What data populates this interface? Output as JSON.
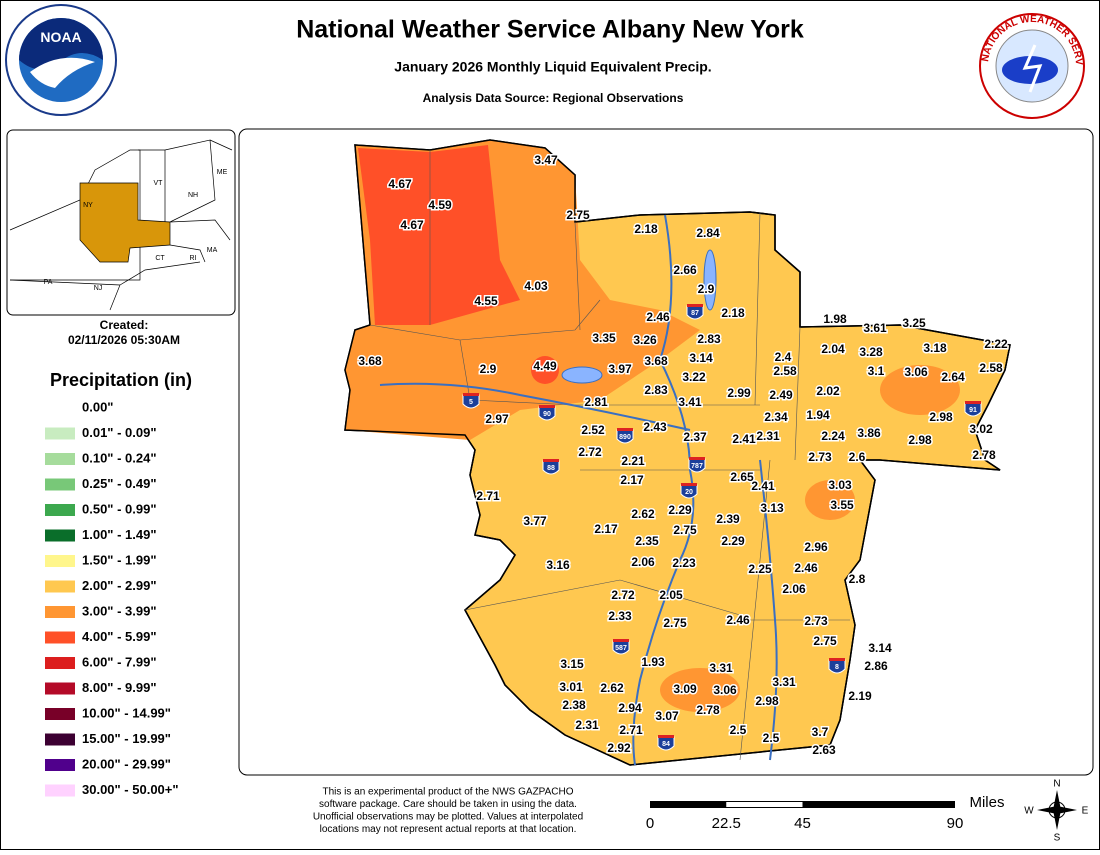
{
  "header": {
    "title": "National Weather Service Albany New York",
    "subtitle": "January 2026 Monthly Liquid Equivalent Precip.",
    "source": "Analysis Data Source: Regional Observations"
  },
  "logos": {
    "noaa": "NOAA",
    "nws": "NATIONAL WEATHER SERVICE"
  },
  "inset": {
    "states": [
      "VT",
      "NH",
      "ME",
      "NY",
      "MA",
      "CT",
      "RI",
      "PA",
      "NJ"
    ]
  },
  "created": {
    "label": "Created:",
    "date": "02/11/2026 05:30AM"
  },
  "legend": {
    "title": "Precipitation (in)",
    "items": [
      {
        "label": "0.00\"",
        "color": "#ffffff"
      },
      {
        "label": "0.01\" - 0.09\"",
        "color": "#c8ecc0"
      },
      {
        "label": "0.10\" - 0.24\"",
        "color": "#a6dc9c"
      },
      {
        "label": "0.25\" - 0.49\"",
        "color": "#78c878"
      },
      {
        "label": "0.50\" - 0.99\"",
        "color": "#3ca84e"
      },
      {
        "label": "1.00\" - 1.49\"",
        "color": "#0a6e2a"
      },
      {
        "label": "1.50\" - 1.99\"",
        "color": "#fff68c"
      },
      {
        "label": "2.00\" - 2.99\"",
        "color": "#ffc850"
      },
      {
        "label": "3.00\" - 3.99\"",
        "color": "#ff9632"
      },
      {
        "label": "4.00\" - 5.99\"",
        "color": "#ff5028"
      },
      {
        "label": "6.00\" - 7.99\"",
        "color": "#dc1e1e"
      },
      {
        "label": "8.00\" - 9.99\"",
        "color": "#b40a28"
      },
      {
        "label": "10.00\" - 14.99\"",
        "color": "#780028"
      },
      {
        "label": "15.00\" - 19.99\"",
        "color": "#3c0032"
      },
      {
        "label": "20.00\" - 29.99\"",
        "color": "#50008c"
      },
      {
        "label": "30.00\" - 50.00+\"",
        "color": "#ffd2ff"
      }
    ]
  },
  "stations": [
    4.67,
    4.59,
    4.67,
    3.47,
    2.75,
    2.18,
    2.84,
    4.03,
    4.55,
    2.66,
    2.9,
    2.46,
    2.18,
    3.35,
    3.26,
    2.83,
    1.98,
    3.61,
    3.25,
    3.68,
    2.9,
    4.49,
    3.97,
    3.68,
    3.14,
    2.4,
    2.04,
    3.28,
    3.18,
    2.22,
    2.58,
    3.1,
    3.06,
    2.64,
    2.58,
    3.22,
    2.83,
    2.99,
    2.49,
    2.02,
    3.41,
    2.81,
    2.97,
    2.34,
    1.94,
    2.98,
    2.52,
    2.43,
    3.02,
    2.37,
    2.41,
    2.31,
    2.24,
    3.86,
    2.98,
    2.72,
    2.21,
    2.73,
    2.6,
    2.78,
    2.17,
    2.65,
    2.71,
    2.41,
    3.03,
    3.13,
    3.55,
    3.77,
    2.62,
    2.29,
    2.39,
    2.17,
    2.75,
    2.29,
    2.35,
    2.96,
    3.16,
    2.06,
    2.23,
    2.25,
    2.46,
    2.8,
    2.06,
    2.72,
    2.05,
    2.33,
    2.75,
    2.46,
    2.73,
    2.75,
    3.14,
    2.86,
    1.93,
    3.31,
    3.15,
    3.01,
    2.62,
    3.09,
    3.06,
    3.31,
    2.19,
    2.38,
    2.94,
    2.78,
    2.98,
    3.07,
    2.31,
    2.71,
    2.5,
    2.5,
    3.7,
    2.92,
    2.63
  ],
  "highways": [
    "87",
    "90",
    "890",
    "88",
    "787",
    "20",
    "5",
    "587",
    "84",
    "8",
    "91"
  ],
  "disclaimer": [
    "This is an experimental product of the NWS GAZPACHO",
    "software package. Care should be taken in using the data.",
    "Unofficial observations may be plotted. Values at interpolated",
    "locations may not represent actual reports at that location."
  ],
  "scale": {
    "unit": "Miles",
    "ticks": [
      0,
      22.5,
      45,
      90
    ]
  },
  "compass": [
    "N",
    "S",
    "E",
    "W"
  ]
}
